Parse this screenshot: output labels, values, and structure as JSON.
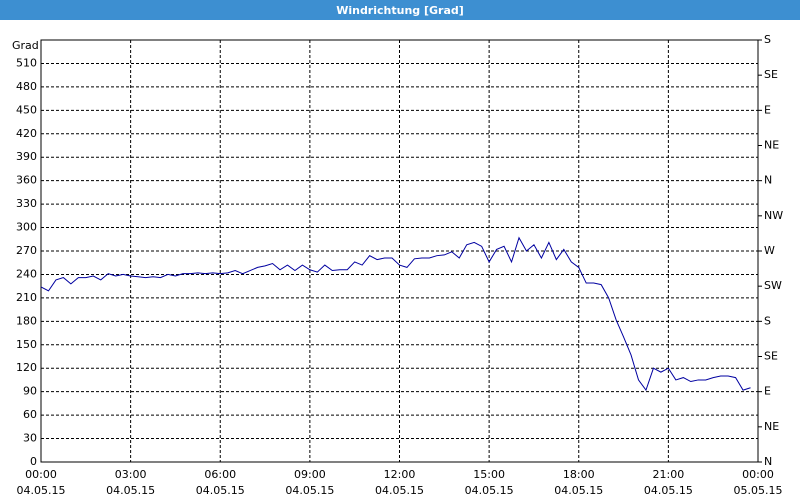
{
  "chart_data": {
    "type": "line",
    "title": "Windrichtung [Grad]",
    "y_label": "Grad",
    "x": [
      0,
      0.25,
      0.5,
      0.75,
      1,
      1.25,
      1.5,
      1.75,
      2,
      2.25,
      2.5,
      2.75,
      3,
      3.25,
      3.5,
      3.75,
      4,
      4.25,
      4.5,
      4.75,
      5,
      5.25,
      5.5,
      5.75,
      6,
      6.25,
      6.5,
      6.75,
      7,
      7.25,
      7.5,
      7.75,
      8,
      8.25,
      8.5,
      8.75,
      9,
      9.25,
      9.5,
      9.75,
      10,
      10.25,
      10.5,
      10.75,
      11,
      11.25,
      11.5,
      11.75,
      12,
      12.25,
      12.5,
      12.75,
      13,
      13.25,
      13.5,
      13.75,
      14,
      14.25,
      14.5,
      14.75,
      15,
      15.25,
      15.5,
      15.75,
      16,
      16.25,
      16.5,
      16.75,
      17,
      17.25,
      17.5,
      17.75,
      18,
      18.25,
      18.5,
      18.75,
      19,
      19.25,
      19.5,
      19.75,
      20,
      20.25,
      20.5,
      20.75,
      21,
      21.25,
      21.5,
      21.75,
      22,
      22.25,
      22.5,
      22.75,
      23,
      23.25,
      23.5,
      23.75
    ],
    "series": [
      {
        "name": "Windrichtung",
        "color": "#0000a0",
        "values": [
          224,
          219,
          233,
          236,
          228,
          236,
          236,
          238,
          233,
          241,
          238,
          240,
          238,
          237,
          236,
          237,
          236,
          240,
          238,
          241,
          241,
          242,
          241,
          242,
          241,
          242,
          245,
          241,
          245,
          249,
          251,
          254,
          246,
          252,
          245,
          252,
          246,
          243,
          252,
          245,
          246,
          246,
          256,
          252,
          264,
          259,
          261,
          261,
          252,
          249,
          260,
          261,
          261,
          264,
          265,
          269,
          261,
          278,
          281,
          276,
          256,
          272,
          276,
          256,
          287,
          270,
          278,
          261,
          281,
          259,
          272,
          256,
          249,
          229,
          229,
          227,
          210,
          182,
          160,
          137,
          105,
          92,
          120,
          115,
          120,
          105,
          108,
          103,
          105,
          105,
          108,
          110,
          110,
          108,
          92,
          95
        ]
      }
    ],
    "xlim": [
      0,
      24
    ],
    "xticks": [
      {
        "value": 0,
        "label": "00:00"
      },
      {
        "value": 3,
        "label": "03:00"
      },
      {
        "value": 6,
        "label": "06:00"
      },
      {
        "value": 9,
        "label": "09:00"
      },
      {
        "value": 12,
        "label": "12:00"
      },
      {
        "value": 15,
        "label": "15:00"
      },
      {
        "value": 18,
        "label": "18:00"
      },
      {
        "value": 21,
        "label": "21:00"
      },
      {
        "value": 24,
        "label": "00:00"
      }
    ],
    "xtick_dates": [
      "04.05.15",
      "04.05.15",
      "04.05.15",
      "04.05.15",
      "04.05.15",
      "04.05.15",
      "04.05.15",
      "04.05.15",
      "05.05.15"
    ],
    "ylim": [
      0,
      540
    ],
    "yticks": [
      0,
      30,
      60,
      90,
      120,
      150,
      180,
      210,
      240,
      270,
      300,
      330,
      360,
      390,
      420,
      450,
      480,
      510
    ],
    "y2lim": [
      0,
      540
    ],
    "y2ticks": [
      {
        "value": 0,
        "label": "N"
      },
      {
        "value": 45,
        "label": "NE"
      },
      {
        "value": 90,
        "label": "E"
      },
      {
        "value": 135,
        "label": "SE"
      },
      {
        "value": 180,
        "label": "S"
      },
      {
        "value": 225,
        "label": "SW"
      },
      {
        "value": 270,
        "label": "W"
      },
      {
        "value": 315,
        "label": "NW"
      },
      {
        "value": 360,
        "label": "N"
      },
      {
        "value": 405,
        "label": "NE"
      },
      {
        "value": 450,
        "label": "E"
      },
      {
        "value": 495,
        "label": "SE"
      },
      {
        "value": 540,
        "label": "S"
      }
    ],
    "grid": true
  }
}
